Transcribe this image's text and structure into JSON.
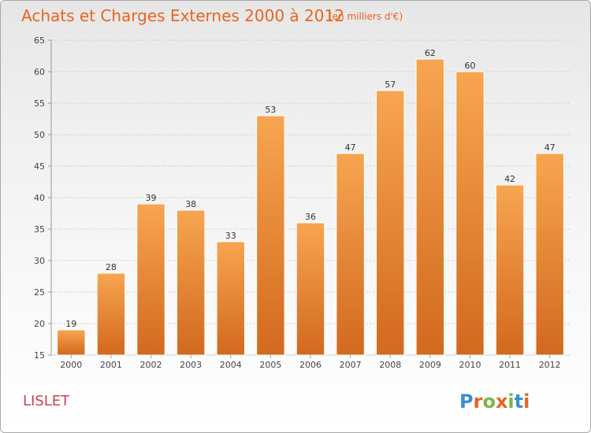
{
  "chart_data": {
    "type": "bar",
    "title": "Achats et Charges Externes 2000 à 2012",
    "subtitle": "(en milliers d'€)",
    "categories": [
      "2000",
      "2001",
      "2002",
      "2003",
      "2004",
      "2005",
      "2006",
      "2007",
      "2008",
      "2009",
      "2010",
      "2011",
      "2012"
    ],
    "values": [
      19,
      28,
      39,
      38,
      33,
      53,
      36,
      47,
      57,
      62,
      60,
      42,
      47
    ],
    "ylim": [
      15,
      65
    ],
    "yticks": [
      15,
      20,
      25,
      30,
      35,
      40,
      45,
      50,
      55,
      60,
      65
    ],
    "grid": true,
    "bar_color_top": "#f7a550",
    "bar_color_bottom": "#d2691e"
  },
  "location": "LISLET",
  "brand": {
    "letters": [
      "P",
      "r",
      "o",
      "x",
      "i",
      "t",
      "i"
    ],
    "colors": [
      "#3a8fd0",
      "#e8641e",
      "#7ab648",
      "#e8641e",
      "#7ab648",
      "#3a8fd0",
      "#e8641e"
    ]
  }
}
